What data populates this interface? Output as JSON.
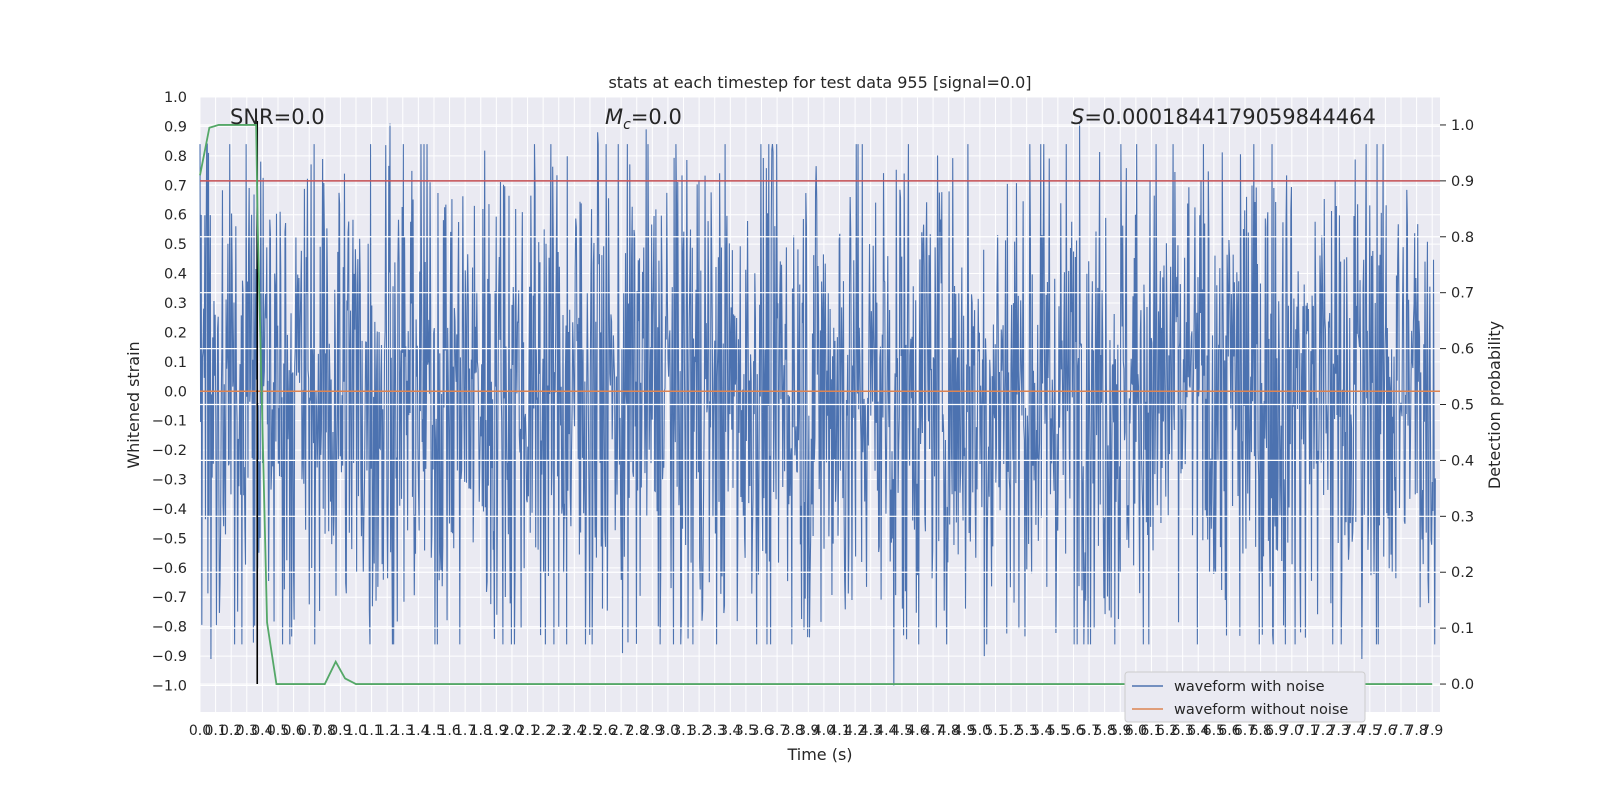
{
  "chart_data": {
    "type": "line",
    "title": "stats at each timestep for test data 955 [signal=0.0]",
    "xlabel": "Time (s)",
    "ylabel": "Whitened strain",
    "y2label": "Detection probability",
    "xlim": [
      0.0,
      7.95
    ],
    "ylim": [
      -1.09,
      1.0
    ],
    "y2lim": [
      -0.05,
      1.05
    ],
    "xtick_step": 0.1,
    "x_ticks": [
      "0.0",
      "0.1",
      "0.2",
      "0.3",
      "0.4",
      "0.5",
      "0.6",
      "0.7",
      "0.8",
      "0.9",
      "1.0",
      "1.1",
      "1.2",
      "1.3",
      "1.4",
      "1.5",
      "1.6",
      "1.7",
      "1.8",
      "1.9",
      "2.0",
      "2.1",
      "2.2",
      "2.3",
      "2.4",
      "2.5",
      "2.6",
      "2.7",
      "2.8",
      "2.9",
      "3.0",
      "3.1",
      "3.2",
      "3.3",
      "3.4",
      "3.5",
      "3.6",
      "3.7",
      "3.8",
      "3.9",
      "4.0",
      "4.1",
      "4.2",
      "4.3",
      "4.4",
      "4.5",
      "4.6",
      "4.7",
      "4.8",
      "4.9",
      "5.0",
      "5.1",
      "5.2",
      "5.3",
      "5.4",
      "5.5",
      "5.6",
      "5.7",
      "5.8",
      "5.9",
      "6.0",
      "6.1",
      "6.2",
      "6.3",
      "6.4",
      "6.5",
      "6.6",
      "6.7",
      "6.8",
      "6.9",
      "7.0",
      "7.1",
      "7.2",
      "7.3",
      "7.4",
      "7.5",
      "7.6",
      "7.7",
      "7.8",
      "7.9"
    ],
    "y_ticks": [
      "1.0",
      "0.9",
      "0.8",
      "0.7",
      "0.6",
      "0.5",
      "0.4",
      "0.3",
      "0.2",
      "0.1",
      "0.0",
      "−0.1",
      "−0.2",
      "−0.3",
      "−0.4",
      "−0.5",
      "−0.6",
      "−0.7",
      "−0.8",
      "−0.9",
      "−1.0"
    ],
    "y2_ticks": [
      "1.0",
      "0.9",
      "0.8",
      "0.7",
      "0.6",
      "0.5",
      "0.4",
      "0.3",
      "0.2",
      "0.1",
      "0.0"
    ],
    "grid": true,
    "annotations": {
      "snr": "SNR=0.0",
      "mc_symbol": "M",
      "mc_sub": "c",
      "mc_value": "=0.0",
      "s_symbol": "S",
      "s_value": "=0.0001844179059844464"
    },
    "threshold_probability": 0.9,
    "marker_time": 0.367,
    "series": [
      {
        "name": "waveform with noise",
        "color": "#4c72b0",
        "samples": 2036,
        "envelope_note": "dense whitened noise; peaks reach ≈0.91 and ≈-1.0",
        "notable_peaks": [
          {
            "x": 1.22,
            "y": 0.91
          },
          {
            "x": 2.55,
            "y": 0.88
          },
          {
            "x": 2.86,
            "y": 0.89
          },
          {
            "x": 5.64,
            "y": 0.91
          },
          {
            "x": 0.07,
            "y": -0.91
          },
          {
            "x": 0.22,
            "y": -0.86
          },
          {
            "x": 2.71,
            "y": -0.89
          },
          {
            "x": 4.45,
            "y": -1.0
          },
          {
            "x": 5.03,
            "y": -0.9
          },
          {
            "x": 7.45,
            "y": -0.91
          }
        ]
      },
      {
        "name": "waveform without noise",
        "color": "#dd8452",
        "x": [
          0.0,
          7.95
        ],
        "y": [
          0.0,
          0.0
        ]
      },
      {
        "name": "",
        "color": "#55a868",
        "axis": "right",
        "x": [
          0.0,
          0.06,
          0.12,
          0.2,
          0.3,
          0.36,
          0.37,
          0.43,
          0.49,
          0.55,
          0.62,
          0.7,
          0.8,
          0.87,
          0.93,
          1.0,
          2.0,
          3.0,
          4.0,
          5.0,
          6.0,
          7.0,
          7.9
        ],
        "y": [
          0.91,
          0.995,
          1.0,
          1.0,
          1.0,
          1.0,
          0.82,
          0.11,
          0.0,
          0.0,
          0.0,
          0.0,
          0.0,
          0.04,
          0.01,
          0.0,
          0.0,
          0.0,
          0.0,
          0.0,
          0.0,
          0.0,
          0.0
        ]
      }
    ],
    "legend": {
      "placement": "lower-right",
      "entries": [
        "waveform with noise",
        "waveform without noise"
      ]
    },
    "colors": {
      "background": "#eaeaf2",
      "grid": "#ffffff",
      "threshold": "#c44e52",
      "marker": "#000000"
    }
  }
}
